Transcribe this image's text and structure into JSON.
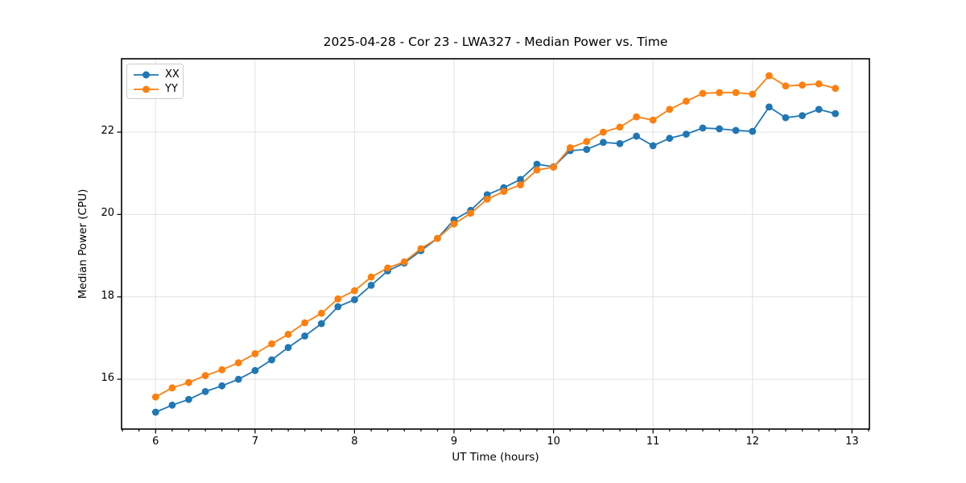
{
  "figure": {
    "title": "2025-04-28 - Cor 23 - LWA327 - Median Power vs. Time",
    "xlabel": "UT Time (hours)",
    "ylabel": "Median Power (CPU)"
  },
  "chart_data": {
    "type": "line",
    "title": "2025-04-28 - Cor 23 - LWA327 - Median Power vs. Time",
    "xlabel": "UT Time (hours)",
    "ylabel": "Median Power (CPU)",
    "xlim": [
      5.658,
      13.175
    ],
    "ylim": [
      14.79,
      23.78
    ],
    "xticks": [
      6,
      7,
      8,
      9,
      10,
      11,
      12,
      13
    ],
    "yticks": [
      16,
      18,
      20,
      22
    ],
    "x_minor_step": 0.16667,
    "grid": true,
    "legend_position": "upper-left",
    "marker": "circle",
    "x": [
      6.0,
      6.167,
      6.333,
      6.5,
      6.667,
      6.833,
      7.0,
      7.167,
      7.333,
      7.5,
      7.667,
      7.833,
      8.0,
      8.167,
      8.333,
      8.5,
      8.667,
      8.833,
      9.0,
      9.167,
      9.333,
      9.5,
      9.667,
      9.833,
      10.0,
      10.167,
      10.333,
      10.5,
      10.667,
      10.833,
      11.0,
      11.167,
      11.333,
      11.5,
      11.667,
      11.833,
      12.0,
      12.167,
      12.333,
      12.5,
      12.667,
      12.833
    ],
    "series": [
      {
        "name": "XX",
        "color": "#1f77b4",
        "values": [
          15.2,
          15.37,
          15.51,
          15.7,
          15.84,
          16.0,
          16.21,
          16.47,
          16.77,
          17.05,
          17.35,
          17.76,
          17.93,
          18.28,
          18.63,
          18.82,
          19.12,
          19.42,
          19.87,
          20.1,
          20.48,
          20.65,
          20.85,
          21.22,
          21.16,
          21.55,
          21.58,
          21.75,
          21.72,
          21.9,
          21.67,
          21.85,
          21.95,
          22.1,
          22.08,
          22.04,
          22.02,
          22.61,
          22.35,
          22.4,
          22.55,
          22.45
        ]
      },
      {
        "name": "YY",
        "color": "#ff7f0e",
        "values": [
          15.57,
          15.79,
          15.92,
          16.09,
          16.23,
          16.4,
          16.62,
          16.86,
          17.09,
          17.37,
          17.6,
          17.95,
          18.15,
          18.48,
          18.7,
          18.85,
          19.17,
          19.42,
          19.77,
          20.03,
          20.37,
          20.56,
          20.72,
          21.08,
          21.15,
          21.62,
          21.77,
          22.0,
          22.12,
          22.37,
          22.29,
          22.55,
          22.75,
          22.94,
          22.96,
          22.96,
          22.92,
          23.37,
          23.12,
          23.14,
          23.17,
          23.06
        ]
      }
    ]
  }
}
